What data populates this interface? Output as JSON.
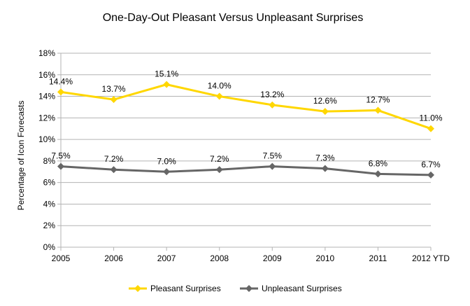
{
  "chart_data": {
    "type": "line",
    "title": "One-Day-Out Pleasant Versus Unpleasant Surprises",
    "xlabel": "",
    "ylabel": "Percentage of Icon Forecasts",
    "categories": [
      "2005",
      "2006",
      "2007",
      "2008",
      "2009",
      "2010",
      "2011",
      "2012 YTD"
    ],
    "ylim": [
      0,
      18
    ],
    "yticks": [
      0,
      2,
      4,
      6,
      8,
      10,
      12,
      14,
      16,
      18
    ],
    "ytick_labels": [
      "0%",
      "2%",
      "4%",
      "6%",
      "8%",
      "10%",
      "12%",
      "14%",
      "16%",
      "18%"
    ],
    "grid": true,
    "legend_position": "bottom",
    "series": [
      {
        "name": "Pleasant Surprises",
        "color": "#FFD700",
        "marker": "diamond",
        "values": [
          14.4,
          13.7,
          15.1,
          14.0,
          13.2,
          12.6,
          12.7,
          11.0
        ],
        "labels": [
          "14.4%",
          "13.7%",
          "15.1%",
          "14.0%",
          "13.2%",
          "12.6%",
          "12.7%",
          "11.0%"
        ]
      },
      {
        "name": "Unpleasant Surprises",
        "color": "#666666",
        "marker": "diamond",
        "values": [
          7.5,
          7.2,
          7.0,
          7.2,
          7.5,
          7.3,
          6.8,
          6.7
        ],
        "labels": [
          "7.5%",
          "7.2%",
          "7.0%",
          "7.2%",
          "7.5%",
          "7.3%",
          "6.8%",
          "6.7%"
        ]
      }
    ]
  }
}
